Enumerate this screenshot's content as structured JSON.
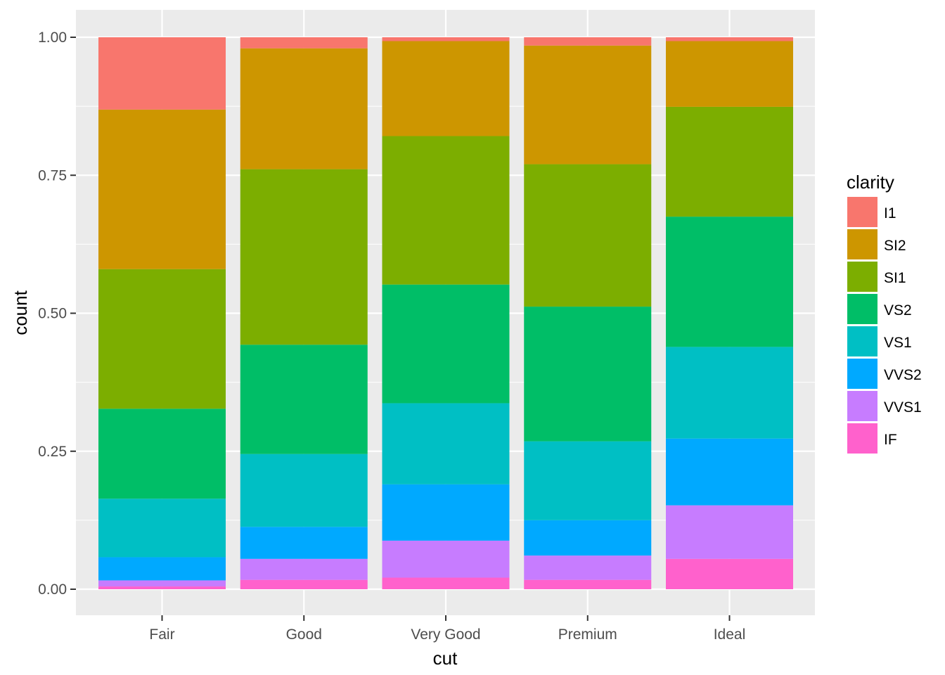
{
  "chart_data": {
    "type": "bar",
    "stacked": "fill",
    "categories": [
      "Fair",
      "Good",
      "Very Good",
      "Premium",
      "Ideal"
    ],
    "series": [
      {
        "name": "I1",
        "color": "#F8766D",
        "values": [
          0.131,
          0.02,
          0.007,
          0.015,
          0.007
        ]
      },
      {
        "name": "SI2",
        "color": "#CD9600",
        "values": [
          0.289,
          0.219,
          0.172,
          0.215,
          0.119
        ]
      },
      {
        "name": "SI1",
        "color": "#7CAE00",
        "values": [
          0.253,
          0.318,
          0.269,
          0.258,
          0.199
        ]
      },
      {
        "name": "VS2",
        "color": "#00BE67",
        "values": [
          0.163,
          0.198,
          0.215,
          0.244,
          0.236
        ]
      },
      {
        "name": "VS1",
        "color": "#00BFC4",
        "values": [
          0.106,
          0.132,
          0.147,
          0.143,
          0.166
        ]
      },
      {
        "name": "VVS2",
        "color": "#00A9FF",
        "values": [
          0.042,
          0.058,
          0.102,
          0.064,
          0.121
        ]
      },
      {
        "name": "VVS1",
        "color": "#C77CFF",
        "values": [
          0.011,
          0.038,
          0.067,
          0.044,
          0.097
        ]
      },
      {
        "name": "IF",
        "color": "#FF61CC",
        "values": [
          0.005,
          0.017,
          0.021,
          0.017,
          0.055
        ]
      }
    ],
    "xlabel": "cut",
    "ylabel": "count",
    "ylim": [
      0,
      1
    ],
    "yticks": [
      0,
      0.25,
      0.5,
      0.75,
      1.0
    ],
    "ytick_labels": [
      "0.00",
      "0.25",
      "0.50",
      "0.75",
      "1.00"
    ],
    "legend_title": "clarity",
    "legend_position": "right",
    "grid": true,
    "panel_background": "#EBEBEB",
    "grid_color": "#FFFFFF"
  }
}
